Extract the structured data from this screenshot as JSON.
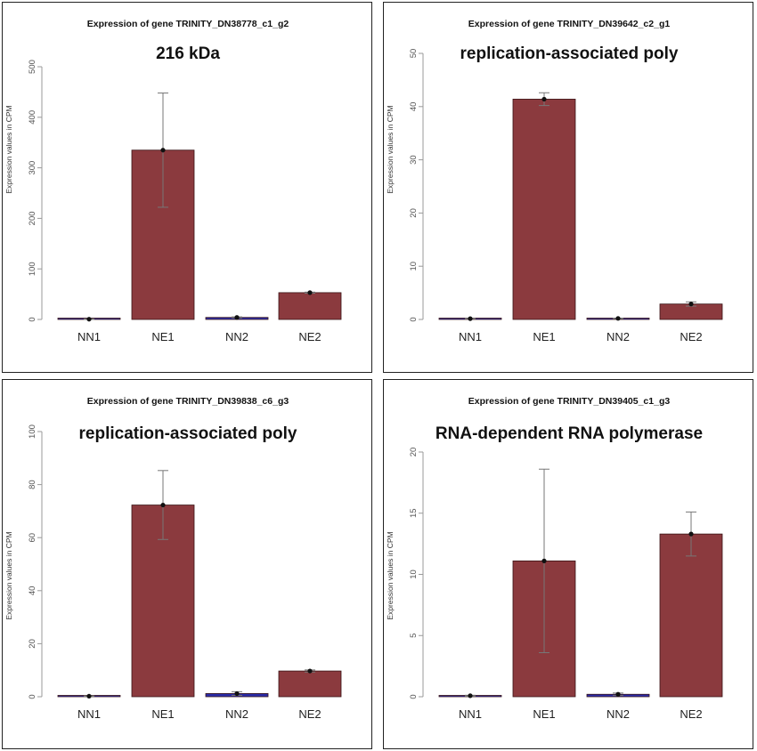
{
  "colors": {
    "ne_bar": "#8b3a3e",
    "nn_bar": "#2b2ba8",
    "bar_edge": "#3a1416",
    "axis": "#999999",
    "errorbar": "#777777"
  },
  "chart_data": [
    {
      "type": "bar",
      "title": "Expression of gene TRINITY_DN38778_c1_g2",
      "subtitle": "216 kDa",
      "ylabel": "Expression values in CPM",
      "xlabel": "",
      "categories": [
        "NN1",
        "NE1",
        "NN2",
        "NE2"
      ],
      "values": [
        0.5,
        335,
        4,
        53
      ],
      "error_low": [
        0,
        222,
        3,
        52
      ],
      "error_high": [
        1,
        448,
        5,
        54
      ],
      "ylim": [
        0,
        500
      ],
      "yticks": [
        "0",
        "100",
        "200",
        "300",
        "400",
        "500"
      ],
      "grid": false
    },
    {
      "type": "bar",
      "title": "Expression of gene TRINITY_DN39642_c2_g1",
      "subtitle": "replication-associated poly",
      "ylabel": "Expression values in CPM",
      "xlabel": "",
      "categories": [
        "NN1",
        "NE1",
        "NN2",
        "NE2"
      ],
      "values": [
        0.15,
        41.4,
        0.2,
        2.9
      ],
      "error_low": [
        0.1,
        40.2,
        0.15,
        2.5
      ],
      "error_high": [
        0.2,
        42.6,
        0.25,
        3.3
      ],
      "ylim": [
        0,
        50
      ],
      "yticks": [
        "0",
        "10",
        "20",
        "30",
        "40",
        "50"
      ],
      "grid": false
    },
    {
      "type": "bar",
      "title": "Expression of gene TRINITY_DN39838_c6_g3",
      "subtitle": "replication-associated poly",
      "ylabel": "Expression values in CPM",
      "xlabel": "",
      "categories": [
        "NN1",
        "NE1",
        "NN2",
        "NE2"
      ],
      "values": [
        0.2,
        72.3,
        1.2,
        9.7
      ],
      "error_low": [
        0.1,
        59.3,
        0.5,
        9.3
      ],
      "error_high": [
        0.3,
        85.3,
        1.9,
        10.1
      ],
      "ylim": [
        0,
        100
      ],
      "yticks": [
        "0",
        "20",
        "40",
        "60",
        "80",
        "100"
      ],
      "grid": false
    },
    {
      "type": "bar",
      "title": "Expression of gene TRINITY_DN39405_c1_g3",
      "subtitle": "RNA-dependent RNA polymerase",
      "ylabel": "Expression values in CPM",
      "xlabel": "",
      "categories": [
        "NN1",
        "NE1",
        "NN2",
        "NE2"
      ],
      "values": [
        0.08,
        11.1,
        0.2,
        13.3
      ],
      "error_low": [
        0.04,
        3.6,
        0.1,
        11.5
      ],
      "error_high": [
        0.12,
        18.6,
        0.3,
        15.1
      ],
      "ylim": [
        0,
        20
      ],
      "yticks": [
        "0",
        "5",
        "10",
        "15",
        "20"
      ],
      "grid": false
    }
  ]
}
